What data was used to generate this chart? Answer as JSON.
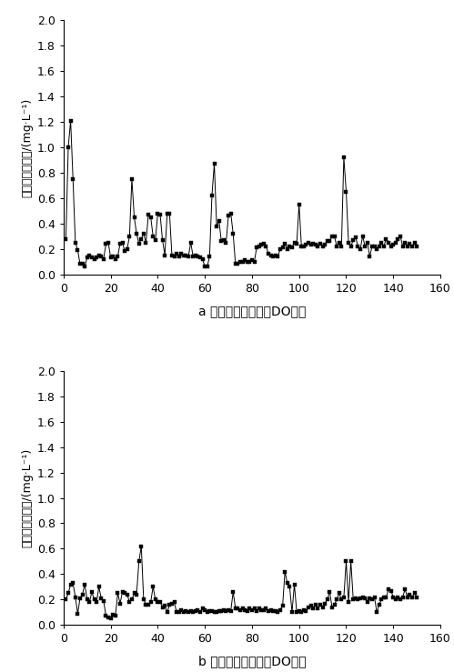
{
  "chart_a": {
    "title": "a 优化前生物池末端DO情况",
    "x": [
      1,
      2,
      3,
      4,
      5,
      6,
      7,
      8,
      9,
      10,
      11,
      12,
      13,
      14,
      15,
      16,
      17,
      18,
      19,
      20,
      21,
      22,
      23,
      24,
      25,
      26,
      27,
      28,
      29,
      30,
      31,
      32,
      33,
      34,
      35,
      36,
      37,
      38,
      39,
      40,
      41,
      42,
      43,
      44,
      45,
      46,
      47,
      48,
      49,
      50,
      51,
      52,
      53,
      54,
      55,
      56,
      57,
      58,
      59,
      60,
      61,
      62,
      63,
      64,
      65,
      66,
      67,
      68,
      69,
      70,
      71,
      72,
      73,
      74,
      75,
      76,
      77,
      78,
      79,
      80,
      81,
      82,
      83,
      84,
      85,
      86,
      87,
      88,
      89,
      90,
      91,
      92,
      93,
      94,
      95,
      96,
      97,
      98,
      99,
      100,
      101,
      102,
      103,
      104,
      105,
      106,
      107,
      108,
      109,
      110,
      111,
      112,
      113,
      114,
      115,
      116,
      117,
      118,
      119,
      120,
      121,
      122,
      123,
      124,
      125,
      126,
      127,
      128,
      129,
      130,
      131,
      132,
      133,
      134,
      135,
      136,
      137,
      138,
      139,
      140,
      141,
      142,
      143,
      144,
      145,
      146,
      147,
      148,
      149,
      150
    ],
    "y": [
      0.28,
      1.0,
      1.21,
      0.75,
      0.25,
      0.19,
      0.08,
      0.08,
      0.06,
      0.13,
      0.15,
      0.13,
      0.12,
      0.13,
      0.15,
      0.14,
      0.12,
      0.24,
      0.25,
      0.13,
      0.14,
      0.12,
      0.14,
      0.24,
      0.25,
      0.18,
      0.2,
      0.3,
      0.75,
      0.45,
      0.32,
      0.24,
      0.28,
      0.32,
      0.25,
      0.47,
      0.45,
      0.3,
      0.27,
      0.48,
      0.47,
      0.27,
      0.15,
      0.48,
      0.48,
      0.15,
      0.14,
      0.16,
      0.14,
      0.16,
      0.15,
      0.15,
      0.14,
      0.25,
      0.14,
      0.15,
      0.14,
      0.13,
      0.12,
      0.06,
      0.06,
      0.14,
      0.62,
      0.87,
      0.38,
      0.42,
      0.26,
      0.27,
      0.25,
      0.46,
      0.48,
      0.32,
      0.08,
      0.08,
      0.1,
      0.1,
      0.11,
      0.1,
      0.1,
      0.11,
      0.1,
      0.21,
      0.22,
      0.23,
      0.24,
      0.22,
      0.16,
      0.15,
      0.14,
      0.15,
      0.14,
      0.2,
      0.21,
      0.24,
      0.2,
      0.22,
      0.21,
      0.25,
      0.24,
      0.55,
      0.22,
      0.22,
      0.23,
      0.25,
      0.23,
      0.24,
      0.23,
      0.22,
      0.24,
      0.22,
      0.23,
      0.26,
      0.26,
      0.3,
      0.3,
      0.22,
      0.25,
      0.22,
      0.92,
      0.65,
      0.25,
      0.22,
      0.27,
      0.29,
      0.22,
      0.2,
      0.3,
      0.22,
      0.25,
      0.14,
      0.22,
      0.22,
      0.2,
      0.22,
      0.25,
      0.22,
      0.28,
      0.25,
      0.22,
      0.23,
      0.25,
      0.28,
      0.3,
      0.22,
      0.25,
      0.22,
      0.24,
      0.22,
      0.25,
      0.22
    ]
  },
  "chart_b": {
    "title": "b 优化后生物池末端DO情况",
    "x": [
      1,
      2,
      3,
      4,
      5,
      6,
      7,
      8,
      9,
      10,
      11,
      12,
      13,
      14,
      15,
      16,
      17,
      18,
      19,
      20,
      21,
      22,
      23,
      24,
      25,
      26,
      27,
      28,
      29,
      30,
      31,
      32,
      33,
      34,
      35,
      36,
      37,
      38,
      39,
      40,
      41,
      42,
      43,
      44,
      45,
      46,
      47,
      48,
      49,
      50,
      51,
      52,
      53,
      54,
      55,
      56,
      57,
      58,
      59,
      60,
      61,
      62,
      63,
      64,
      65,
      66,
      67,
      68,
      69,
      70,
      71,
      72,
      73,
      74,
      75,
      76,
      77,
      78,
      79,
      80,
      81,
      82,
      83,
      84,
      85,
      86,
      87,
      88,
      89,
      90,
      91,
      92,
      93,
      94,
      95,
      96,
      97,
      98,
      99,
      100,
      101,
      102,
      103,
      104,
      105,
      106,
      107,
      108,
      109,
      110,
      111,
      112,
      113,
      114,
      115,
      116,
      117,
      118,
      119,
      120,
      121,
      122,
      123,
      124,
      125,
      126,
      127,
      128,
      129,
      130,
      131,
      132,
      133,
      134,
      135,
      136,
      137,
      138,
      139,
      140,
      141,
      142,
      143,
      144,
      145,
      146,
      147,
      148,
      149,
      150
    ],
    "y": [
      0.2,
      0.25,
      0.32,
      0.33,
      0.22,
      0.09,
      0.21,
      0.24,
      0.32,
      0.2,
      0.18,
      0.26,
      0.2,
      0.18,
      0.3,
      0.21,
      0.19,
      0.07,
      0.06,
      0.05,
      0.08,
      0.07,
      0.25,
      0.17,
      0.26,
      0.25,
      0.24,
      0.18,
      0.2,
      0.25,
      0.24,
      0.5,
      0.62,
      0.2,
      0.16,
      0.16,
      0.18,
      0.3,
      0.2,
      0.18,
      0.18,
      0.14,
      0.15,
      0.1,
      0.16,
      0.17,
      0.18,
      0.1,
      0.1,
      0.12,
      0.1,
      0.11,
      0.1,
      0.11,
      0.1,
      0.11,
      0.12,
      0.1,
      0.13,
      0.12,
      0.1,
      0.11,
      0.11,
      0.1,
      0.1,
      0.11,
      0.11,
      0.12,
      0.11,
      0.12,
      0.11,
      0.26,
      0.13,
      0.13,
      0.12,
      0.13,
      0.12,
      0.11,
      0.13,
      0.12,
      0.13,
      0.11,
      0.13,
      0.12,
      0.12,
      0.13,
      0.11,
      0.12,
      0.11,
      0.11,
      0.1,
      0.12,
      0.15,
      0.42,
      0.33,
      0.3,
      0.1,
      0.32,
      0.1,
      0.11,
      0.1,
      0.12,
      0.11,
      0.14,
      0.15,
      0.13,
      0.16,
      0.13,
      0.16,
      0.14,
      0.17,
      0.2,
      0.26,
      0.14,
      0.16,
      0.2,
      0.25,
      0.2,
      0.22,
      0.5,
      0.18,
      0.5,
      0.2,
      0.21,
      0.2,
      0.21,
      0.22,
      0.21,
      0.18,
      0.21,
      0.2,
      0.22,
      0.1,
      0.16,
      0.2,
      0.22,
      0.22,
      0.28,
      0.27,
      0.22,
      0.2,
      0.22,
      0.2,
      0.22,
      0.28,
      0.22,
      0.24,
      0.22,
      0.25,
      0.22
    ]
  },
  "ylabel": "末端溶解氧浓度/(mg·L⁻¹)",
  "xlim": [
    0,
    160
  ],
  "ylim": [
    0,
    2.0
  ],
  "yticks": [
    0.0,
    0.2,
    0.4,
    0.6,
    0.8,
    1.0,
    1.2,
    1.4,
    1.6,
    1.8,
    2.0
  ],
  "xticks": [
    0,
    20,
    40,
    60,
    80,
    100,
    120,
    140,
    160
  ],
  "line_color": "#000000",
  "marker": "s",
  "markersize": 3.5,
  "linewidth": 0.7,
  "bg_color": "#ffffff",
  "tick_fontsize": 9,
  "label_fontsize": 9,
  "title_fontsize": 10
}
